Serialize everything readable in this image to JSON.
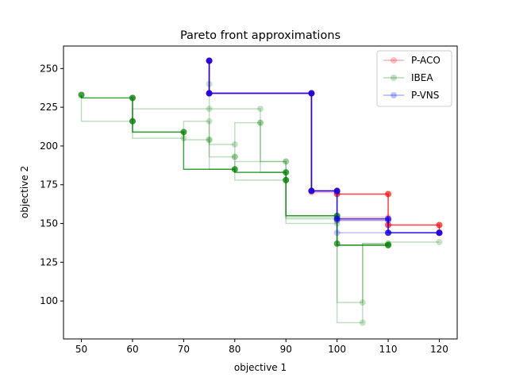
{
  "chart_data": {
    "type": "line",
    "title": "Pareto front approximations",
    "xlabel": "objective 1",
    "ylabel": "objective 2",
    "xlim": [
      46.5,
      123.5
    ],
    "ylim": [
      75.5,
      264.5
    ],
    "xticks": [
      50,
      60,
      70,
      80,
      90,
      100,
      110,
      120
    ],
    "yticks": [
      100,
      125,
      150,
      175,
      200,
      225,
      250
    ],
    "grid": false,
    "legend_position": "top-right",
    "draw_style": "steps-post",
    "series": [
      {
        "name": "P-ACO",
        "color": "#ff0000",
        "fronts": [
          [
            [
              75,
              255
            ],
            [
              75,
              234
            ],
            [
              95,
              234
            ],
            [
              95,
              171
            ],
            [
              100,
              171
            ],
            [
              100,
              169
            ],
            [
              110,
              169
            ],
            [
              110,
              149
            ],
            [
              120,
              149
            ],
            [
              120,
              144
            ]
          ],
          [
            [
              75,
              255
            ],
            [
              75,
              234
            ],
            [
              95,
              234
            ],
            [
              95,
              170
            ],
            [
              100,
              170
            ],
            [
              100,
              154
            ],
            [
              110,
              154
            ],
            [
              110,
              144
            ],
            [
              120,
              144
            ]
          ],
          [
            [
              75,
              255
            ],
            [
              75,
              234
            ],
            [
              95,
              234
            ],
            [
              95,
              171
            ],
            [
              100,
              171
            ],
            [
              100,
              152
            ],
            [
              110,
              152
            ],
            [
              110,
              144
            ],
            [
              120,
              144
            ]
          ]
        ]
      },
      {
        "name": "IBEA",
        "color": "#008000",
        "fronts": [
          [
            [
              50,
              233
            ],
            [
              60,
              231
            ],
            [
              60,
              216
            ],
            [
              70,
              209
            ],
            [
              80,
              185
            ],
            [
              90,
              183
            ],
            [
              90,
              178
            ],
            [
              100,
              155
            ],
            [
              100,
              137
            ],
            [
              110,
              136
            ]
          ],
          [
            [
              60,
              231
            ],
            [
              60,
              216
            ],
            [
              70,
              209
            ],
            [
              75,
              204
            ],
            [
              80,
              185
            ],
            [
              90,
              190
            ],
            [
              90,
              178
            ],
            [
              100,
              154
            ],
            [
              110,
              136
            ]
          ],
          [
            [
              50,
              233
            ],
            [
              60,
              216
            ],
            [
              75,
              224
            ],
            [
              85,
              224
            ],
            [
              85,
              215
            ],
            [
              90,
              190
            ],
            [
              100,
              155
            ],
            [
              105,
              99
            ],
            [
              110,
              137
            ],
            [
              120,
              138
            ]
          ],
          [
            [
              60,
              231
            ],
            [
              70,
              205
            ],
            [
              75,
              216
            ],
            [
              80,
              201
            ],
            [
              80,
              193
            ],
            [
              85,
              215
            ],
            [
              90,
              183
            ],
            [
              100,
              153
            ],
            [
              105,
              86
            ],
            [
              110,
              137
            ]
          ],
          [
            [
              75,
              240
            ],
            [
              75,
              204
            ],
            [
              80,
              193
            ],
            [
              90,
              178
            ],
            [
              100,
              150
            ],
            [
              110,
              136
            ]
          ]
        ]
      },
      {
        "name": "P-VNS",
        "color": "#0000ff",
        "fronts": [
          [
            [
              75,
              255
            ],
            [
              75,
              234
            ],
            [
              95,
              234
            ],
            [
              95,
              171
            ],
            [
              100,
              171
            ],
            [
              100,
              153
            ],
            [
              110,
              153
            ],
            [
              110,
              144
            ],
            [
              120,
              144
            ]
          ],
          [
            [
              75,
              255
            ],
            [
              75,
              234
            ],
            [
              95,
              234
            ],
            [
              95,
              171
            ],
            [
              100,
              171
            ],
            [
              100,
              152
            ],
            [
              110,
              152
            ],
            [
              110,
              144
            ],
            [
              120,
              144
            ]
          ],
          [
            [
              75,
              255
            ],
            [
              75,
              234
            ],
            [
              95,
              234
            ],
            [
              95,
              171
            ],
            [
              100,
              171
            ],
            [
              100,
              144
            ],
            [
              120,
              144
            ]
          ]
        ]
      }
    ]
  }
}
